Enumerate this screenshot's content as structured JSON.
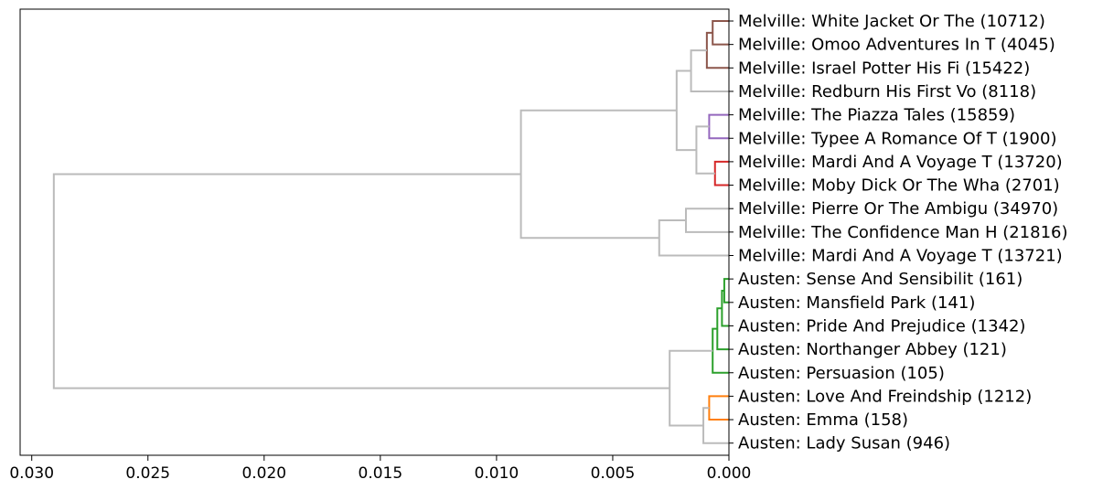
{
  "chart_data": {
    "type": "dendrogram",
    "orientation": "right",
    "title": "",
    "xlabel": "",
    "ylabel": "",
    "xlim": [
      0.0305,
      0.0
    ],
    "x_ticks": [
      0.03,
      0.025,
      0.02,
      0.015,
      0.01,
      0.005,
      0.0
    ],
    "x_tick_labels": [
      "0.030",
      "0.025",
      "0.020",
      "0.015",
      "0.010",
      "0.005",
      "0.000"
    ],
    "leaves": [
      "Melville: White Jacket Or The  (10712)",
      "Melville: Omoo Adventures In T (4045)",
      "Melville: Israel Potter His Fi (15422)",
      "Melville: Redburn His First Vo (8118)",
      "Melville: The Piazza Tales (15859)",
      "Melville: Typee A Romance Of T (1900)",
      "Melville: Mardi And A Voyage T (13720)",
      "Melville: Moby Dick Or The Wha (2701)",
      "Melville: Pierre Or The Ambigu (34970)",
      "Melville: The Confidence Man H (21816)",
      "Melville: Mardi And A Voyage T (13721)",
      "Austen: Sense And Sensibilit (161)",
      "Austen: Mansfield Park (141)",
      "Austen: Pride And Prejudice (1342)",
      "Austen: Northanger Abbey (121)",
      "Austen: Persuasion (105)",
      "Austen: Love And Freindship  (1212)",
      "Austen: Emma (158)",
      "Austen: Lady Susan (946)"
    ],
    "merges": [
      {
        "left": 0,
        "right": 1,
        "distance": 0.0007,
        "color": "#8c564b"
      },
      {
        "left": 19,
        "right": 2,
        "distance": 0.00095,
        "color": "#8c564b"
      },
      {
        "left": 20,
        "right": 3,
        "distance": 0.00163,
        "color": "#bbbbbb"
      },
      {
        "left": 4,
        "right": 5,
        "distance": 0.00085,
        "color": "#9467bd"
      },
      {
        "left": 6,
        "right": 7,
        "distance": 0.0006,
        "color": "#d62728"
      },
      {
        "left": 22,
        "right": 23,
        "distance": 0.0014,
        "color": "#bbbbbb"
      },
      {
        "left": 21,
        "right": 24,
        "distance": 0.00225,
        "color": "#bbbbbb"
      },
      {
        "left": 8,
        "right": 9,
        "distance": 0.00185,
        "color": "#bbbbbb"
      },
      {
        "left": 26,
        "right": 10,
        "distance": 0.003,
        "color": "#bbbbbb"
      },
      {
        "left": 25,
        "right": 27,
        "distance": 0.00895,
        "color": "#bbbbbb"
      },
      {
        "left": 11,
        "right": 12,
        "distance": 0.0002,
        "color": "#2ca02c"
      },
      {
        "left": 29,
        "right": 13,
        "distance": 0.0003,
        "color": "#2ca02c"
      },
      {
        "left": 30,
        "right": 14,
        "distance": 0.0005,
        "color": "#2ca02c"
      },
      {
        "left": 31,
        "right": 15,
        "distance": 0.0007,
        "color": "#2ca02c"
      },
      {
        "left": 16,
        "right": 17,
        "distance": 0.00085,
        "color": "#ff7f0e"
      },
      {
        "left": 33,
        "right": 18,
        "distance": 0.0011,
        "color": "#bbbbbb"
      },
      {
        "left": 32,
        "right": 34,
        "distance": 0.00255,
        "color": "#bbbbbb"
      },
      {
        "left": 28,
        "right": 35,
        "distance": 0.02905,
        "color": "#bbbbbb"
      }
    ],
    "grid": false,
    "legend": "none"
  }
}
